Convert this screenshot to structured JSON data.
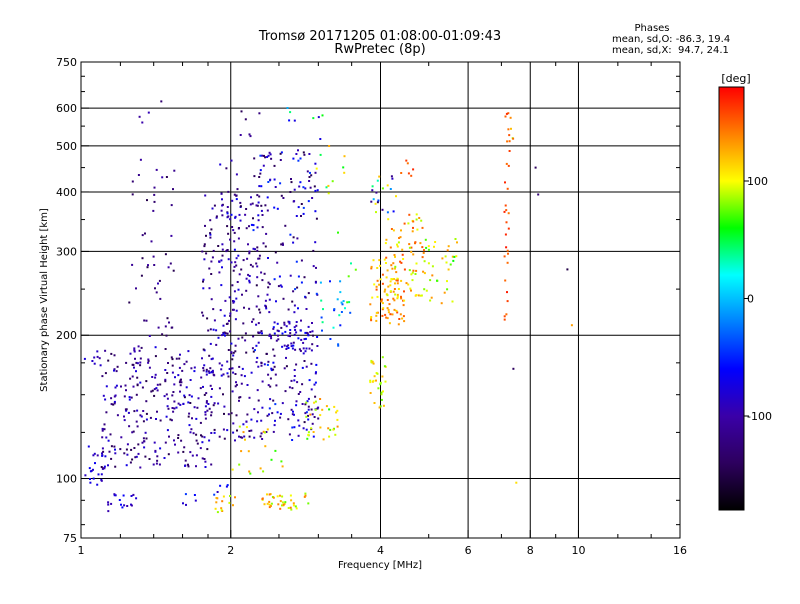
{
  "chart_data": {
    "type": "scatter",
    "title": "Tromsø 20171205 01:08:00-01:09:43",
    "subtitle": "RwPretec (8p)",
    "xlabel": "Frequency [MHz]",
    "ylabel": "Stationary phase Virtual Height [km]",
    "xscale": "log",
    "yscale": "log",
    "xlim": [
      1,
      16
    ],
    "ylim": [
      75,
      750
    ],
    "x_ticks": [
      1,
      2,
      4,
      6,
      8,
      10,
      16
    ],
    "x_tick_labels": [
      "1",
      "2",
      "4",
      "6",
      "8",
      "10",
      "16"
    ],
    "y_ticks": [
      75,
      100,
      200,
      300,
      400,
      500,
      600,
      750
    ],
    "y_tick_labels": [
      "75",
      "100",
      "200",
      "300",
      "400",
      "500",
      "600",
      "750"
    ],
    "x_gridlines": [
      2,
      4,
      6,
      8,
      10
    ],
    "y_gridlines": [
      100,
      200,
      300,
      400,
      500,
      600
    ],
    "grid": true,
    "colorbar": {
      "label": "[deg]",
      "range": [
        -180,
        180
      ],
      "ticks": [
        100,
        0,
        -100
      ],
      "tick_labels": [
        "100",
        "0",
        "-100"
      ],
      "colors": [
        "#000000",
        "#2d005e",
        "#3a00a8",
        "#0000ff",
        "#0080ff",
        "#00ffff",
        "#00ff00",
        "#ffff00",
        "#ff8000",
        "#ff0000"
      ]
    },
    "stats": {
      "title": "Phases",
      "line_o": "mean, sd,O: -86.3, 19.4",
      "line_x": "mean, sd,X:  94.7, 24.1"
    },
    "clusters": [
      {
        "f": [
          1.02,
          1.12
        ],
        "h": [
          95,
          120
        ],
        "n": 25,
        "phase": [
          -100,
          -60
        ]
      },
      {
        "f": [
          1.0,
          1.1
        ],
        "h": [
          170,
          185
        ],
        "n": 8,
        "phase": [
          -110,
          -60
        ]
      },
      {
        "f": [
          1.1,
          1.85
        ],
        "h": [
          105,
          190
        ],
        "n": 260,
        "phase": [
          -150,
          -70
        ]
      },
      {
        "f": [
          1.25,
          1.55
        ],
        "h": [
          110,
          470
        ],
        "n": 70,
        "phase": [
          -150,
          -90
        ]
      },
      {
        "f": [
          1.3,
          1.55
        ],
        "h": [
          520,
          615
        ],
        "n": 3,
        "phase": [
          -120,
          -90
        ]
      },
      {
        "f": [
          1.12,
          1.3
        ],
        "h": [
          85,
          93
        ],
        "n": 18,
        "phase": [
          -100,
          -60
        ]
      },
      {
        "f": [
          1.75,
          2.4
        ],
        "h": [
          120,
          400
        ],
        "n": 260,
        "phase": [
          -150,
          -70
        ]
      },
      {
        "f": [
          1.9,
          2.1
        ],
        "h": [
          150,
          470
        ],
        "n": 60,
        "phase": [
          -140,
          -60
        ]
      },
      {
        "f": [
          1.6,
          2.1
        ],
        "h": [
          88,
          97
        ],
        "n": 10,
        "phase": [
          -100,
          -40
        ]
      },
      {
        "f": [
          1.85,
          2.05
        ],
        "h": [
          85,
          92
        ],
        "n": 14,
        "phase": [
          80,
          140
        ]
      },
      {
        "f": [
          2.0,
          2.3
        ],
        "h": [
          520,
          600
        ],
        "n": 6,
        "phase": [
          -150,
          -100
        ]
      },
      {
        "f": [
          2.2,
          3.0
        ],
        "h": [
          120,
          500
        ],
        "n": 200,
        "phase": [
          -150,
          -40
        ]
      },
      {
        "f": [
          2.4,
          3.0
        ],
        "h": [
          185,
          215
        ],
        "n": 60,
        "phase": [
          -120,
          -60
        ]
      },
      {
        "f": [
          2.4,
          3.0
        ],
        "h": [
          125,
          175
        ],
        "n": 40,
        "phase": [
          -140,
          -60
        ]
      },
      {
        "f": [
          2.0,
          2.6
        ],
        "h": [
          100,
          130
        ],
        "n": 20,
        "phase": [
          60,
          140
        ]
      },
      {
        "f": [
          2.3,
          2.9
        ],
        "h": [
          86,
          93
        ],
        "n": 40,
        "phase": [
          70,
          150
        ]
      },
      {
        "f": [
          2.6,
          3.1
        ],
        "h": [
          510,
          650
        ],
        "n": 8,
        "phase": [
          -140,
          60
        ]
      },
      {
        "f": [
          2.8,
          3.3
        ],
        "h": [
          120,
          150
        ],
        "n": 30,
        "phase": [
          60,
          140
        ]
      },
      {
        "f": [
          3.0,
          3.4
        ],
        "h": [
          190,
          260
        ],
        "n": 20,
        "phase": [
          -60,
          40
        ]
      },
      {
        "f": [
          2.9,
          3.4
        ],
        "h": [
          380,
          500
        ],
        "n": 10,
        "phase": [
          40,
          140
        ]
      },
      {
        "f": [
          3.2,
          3.6
        ],
        "h": [
          210,
          330
        ],
        "n": 10,
        "phase": [
          -40,
          80
        ]
      },
      {
        "f": [
          3.8,
          4.1
        ],
        "h": [
          140,
          180
        ],
        "n": 30,
        "phase": [
          70,
          130
        ]
      },
      {
        "f": [
          3.8,
          4.5
        ],
        "h": [
          210,
          290
        ],
        "n": 80,
        "phase": [
          100,
          160
        ]
      },
      {
        "f": [
          4.1,
          4.9
        ],
        "h": [
          240,
          360
        ],
        "n": 80,
        "phase": [
          80,
          160
        ]
      },
      {
        "f": [
          3.8,
          4.3
        ],
        "h": [
          360,
          460
        ],
        "n": 20,
        "phase": [
          -150,
          120
        ]
      },
      {
        "f": [
          4.4,
          4.7
        ],
        "h": [
          430,
          470
        ],
        "n": 6,
        "phase": [
          140,
          170
        ]
      },
      {
        "f": [
          4.9,
          5.7
        ],
        "h": [
          230,
          320
        ],
        "n": 35,
        "phase": [
          60,
          140
        ]
      },
      {
        "f": [
          7.1,
          7.3
        ],
        "h": [
          215,
          620
        ],
        "n": 30,
        "phase": [
          140,
          175
        ]
      },
      {
        "f": [
          7.3,
          7.4
        ],
        "h": [
          500,
          600
        ],
        "n": 4,
        "phase": [
          60,
          160
        ]
      }
    ],
    "points": [
      {
        "f": 1.45,
        "h": 620,
        "phase": -130
      },
      {
        "f": 8.2,
        "h": 450,
        "phase": -140
      },
      {
        "f": 8.3,
        "h": 395,
        "phase": -130
      },
      {
        "f": 9.5,
        "h": 275,
        "phase": -150
      },
      {
        "f": 7.4,
        "h": 170,
        "phase": -140
      },
      {
        "f": 9.7,
        "h": 210,
        "phase": 130
      },
      {
        "f": 7.5,
        "h": 98,
        "phase": 110
      }
    ]
  }
}
